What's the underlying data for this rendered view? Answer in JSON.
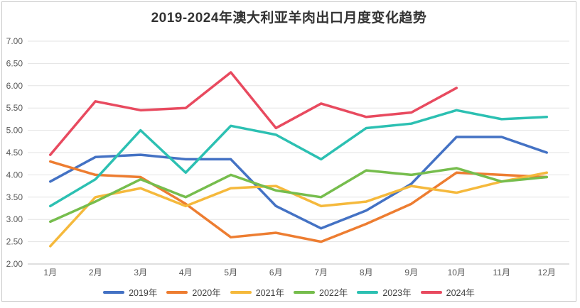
{
  "title": "2019-2024年澳大利亚羊肉出口月度变化趋势",
  "colors": {
    "grid": "#e3e3e3",
    "axis_line": "#bfbfbf",
    "tick_text": "#595959",
    "title_text": "#333333",
    "frame_border": "#c9c9c9"
  },
  "chart_data": {
    "type": "line",
    "title": "2019-2024年澳大利亚羊肉出口月度变化趋势",
    "xlabel": "",
    "ylabel": "",
    "ylim": [
      2.0,
      7.0
    ],
    "grid": true,
    "legend_position": "bottom",
    "y_ticks": [
      "7.00",
      "6.50",
      "6.00",
      "5.50",
      "5.00",
      "4.50",
      "4.00",
      "3.50",
      "3.00",
      "2.50",
      "2.00"
    ],
    "x": [
      "1月",
      "2月",
      "3月",
      "4月",
      "5月",
      "6月",
      "7月",
      "8月",
      "9月",
      "10月",
      "11月",
      "12月"
    ],
    "series": [
      {
        "name": "2019年",
        "color": "#4472C4",
        "values": [
          3.85,
          4.4,
          4.45,
          4.35,
          4.35,
          3.3,
          2.8,
          3.2,
          3.8,
          4.85,
          4.85,
          4.5
        ]
      },
      {
        "name": "2020年",
        "color": "#ED7D31",
        "values": [
          4.3,
          4.0,
          3.95,
          3.35,
          2.6,
          2.7,
          2.5,
          2.9,
          3.35,
          4.05,
          4.0,
          3.95
        ]
      },
      {
        "name": "2021年",
        "color": "#F5B93C",
        "values": [
          2.4,
          3.5,
          3.7,
          3.3,
          3.7,
          3.75,
          3.3,
          3.4,
          3.75,
          3.6,
          3.85,
          4.05
        ]
      },
      {
        "name": "2022年",
        "color": "#76BD4D",
        "values": [
          2.95,
          3.4,
          3.9,
          3.5,
          4.0,
          3.65,
          3.5,
          4.1,
          4.0,
          4.15,
          3.85,
          3.95
        ]
      },
      {
        "name": "2023年",
        "color": "#2CC0B2",
        "values": [
          3.3,
          3.9,
          5.0,
          4.05,
          5.1,
          4.9,
          4.35,
          5.05,
          5.15,
          5.45,
          5.25,
          5.3
        ]
      },
      {
        "name": "2024年",
        "color": "#E84A5F",
        "values": [
          4.45,
          5.65,
          5.45,
          5.5,
          6.3,
          5.05,
          5.6,
          5.3,
          5.4,
          5.95,
          null,
          null
        ]
      }
    ]
  }
}
